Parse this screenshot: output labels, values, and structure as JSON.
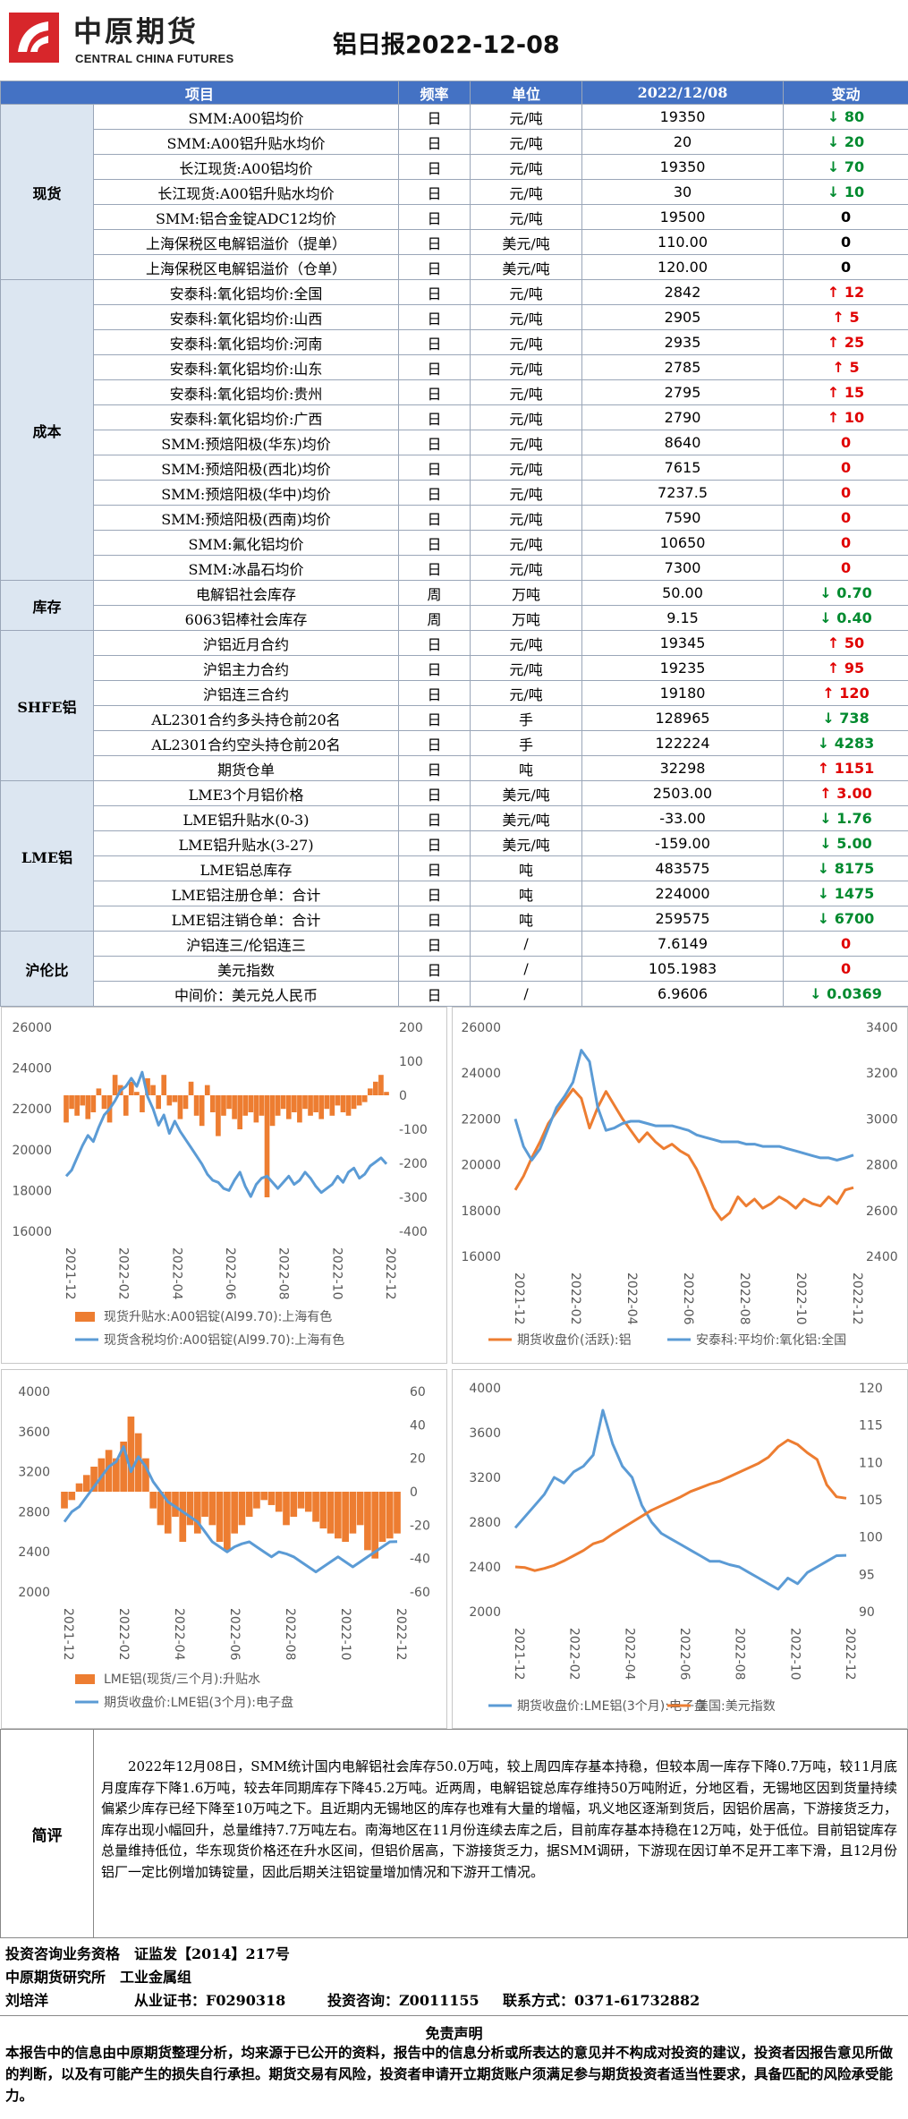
{
  "header": {
    "logo_cn": "中原期货",
    "logo_en": "CENTRAL CHINA FUTURES",
    "title": "铝日报2022-12-08"
  },
  "table": {
    "headers": [
      "项目",
      "频率",
      "单位",
      "2022/12/08",
      "变动"
    ],
    "sections": [
      {
        "category": "现货",
        "rows": [
          {
            "item": "SMM:A00铝均价",
            "freq": "日",
            "unit": "元/吨",
            "value": "19350",
            "dir": "down",
            "change": "80"
          },
          {
            "item": "SMM:A00铝升贴水均价",
            "freq": "日",
            "unit": "元/吨",
            "value": "20",
            "dir": "down",
            "change": "20"
          },
          {
            "item": "长江现货:A00铝均价",
            "freq": "日",
            "unit": "元/吨",
            "value": "19350",
            "dir": "down",
            "change": "70"
          },
          {
            "item": "长江现货:A00铝升贴水均价",
            "freq": "日",
            "unit": "元/吨",
            "value": "30",
            "dir": "down",
            "change": "10"
          },
          {
            "item": "SMM:铝合金锭ADC12均价",
            "freq": "日",
            "unit": "元/吨",
            "value": "19500",
            "dir": "flat",
            "change": "0"
          },
          {
            "item": "上海保税区电解铝溢价（提单）",
            "freq": "日",
            "unit": "美元/吨",
            "value": "110.00",
            "dir": "flat",
            "change": "0"
          },
          {
            "item": "上海保税区电解铝溢价（仓单）",
            "freq": "日",
            "unit": "美元/吨",
            "value": "120.00",
            "dir": "flat",
            "change": "0"
          }
        ]
      },
      {
        "category": "成本",
        "rows": [
          {
            "item": "安泰科:氧化铝均价:全国",
            "freq": "日",
            "unit": "元/吨",
            "value": "2842",
            "dir": "up",
            "change": "12"
          },
          {
            "item": "安泰科:氧化铝均价:山西",
            "freq": "日",
            "unit": "元/吨",
            "value": "2905",
            "dir": "up",
            "change": "5"
          },
          {
            "item": "安泰科:氧化铝均价:河南",
            "freq": "日",
            "unit": "元/吨",
            "value": "2935",
            "dir": "up",
            "change": "25"
          },
          {
            "item": "安泰科:氧化铝均价:山东",
            "freq": "日",
            "unit": "元/吨",
            "value": "2785",
            "dir": "up",
            "change": "5"
          },
          {
            "item": "安泰科:氧化铝均价:贵州",
            "freq": "日",
            "unit": "元/吨",
            "value": "2795",
            "dir": "up",
            "change": "15"
          },
          {
            "item": "安泰科:氧化铝均价:广西",
            "freq": "日",
            "unit": "元/吨",
            "value": "2790",
            "dir": "up",
            "change": "10"
          },
          {
            "item": "SMM:预焙阳极(华东)均价",
            "freq": "日",
            "unit": "元/吨",
            "value": "8640",
            "dir": "red0",
            "change": "0"
          },
          {
            "item": "SMM:预焙阳极(西北)均价",
            "freq": "日",
            "unit": "元/吨",
            "value": "7615",
            "dir": "red0",
            "change": "0"
          },
          {
            "item": "SMM:预焙阳极(华中)均价",
            "freq": "日",
            "unit": "元/吨",
            "value": "7237.5",
            "dir": "red0",
            "change": "0"
          },
          {
            "item": "SMM:预焙阳极(西南)均价",
            "freq": "日",
            "unit": "元/吨",
            "value": "7590",
            "dir": "red0",
            "change": "0"
          },
          {
            "item": "SMM:氟化铝均价",
            "freq": "日",
            "unit": "元/吨",
            "value": "10650",
            "dir": "red0",
            "change": "0"
          },
          {
            "item": "SMM:冰晶石均价",
            "freq": "日",
            "unit": "元/吨",
            "value": "7300",
            "dir": "red0",
            "change": "0"
          }
        ]
      },
      {
        "category": "库存",
        "rows": [
          {
            "item": "电解铝社会库存",
            "freq": "周",
            "unit": "万吨",
            "value": "50.00",
            "dir": "down",
            "change": "0.70"
          },
          {
            "item": "6063铝棒社会库存",
            "freq": "周",
            "unit": "万吨",
            "value": "9.15",
            "dir": "down",
            "change": "0.40"
          }
        ]
      },
      {
        "category": "SHFE铝",
        "rows": [
          {
            "item": "沪铝近月合约",
            "freq": "日",
            "unit": "元/吨",
            "value": "19345",
            "dir": "up",
            "change": "50"
          },
          {
            "item": "沪铝主力合约",
            "freq": "日",
            "unit": "元/吨",
            "value": "19235",
            "dir": "up",
            "change": "95"
          },
          {
            "item": "沪铝连三合约",
            "freq": "日",
            "unit": "元/吨",
            "value": "19180",
            "dir": "up",
            "change": "120"
          },
          {
            "item": "AL2301合约多头持仓前20名",
            "freq": "日",
            "unit": "手",
            "value": "128965",
            "dir": "down",
            "change": "738"
          },
          {
            "item": "AL2301合约空头持仓前20名",
            "freq": "日",
            "unit": "手",
            "value": "122224",
            "dir": "down",
            "change": "4283"
          },
          {
            "item": "期货仓单",
            "freq": "日",
            "unit": "吨",
            "value": "32298",
            "dir": "up",
            "change": "1151"
          }
        ]
      },
      {
        "category": "LME铝",
        "rows": [
          {
            "item": "LME3个月铝价格",
            "freq": "日",
            "unit": "美元/吨",
            "value": "2503.00",
            "dir": "up",
            "change": "3.00"
          },
          {
            "item": "LME铝升贴水(0-3)",
            "freq": "日",
            "unit": "美元/吨",
            "value": "-33.00",
            "dir": "down",
            "change": "1.76"
          },
          {
            "item": "LME铝升贴水(3-27)",
            "freq": "日",
            "unit": "美元/吨",
            "value": "-159.00",
            "dir": "down",
            "change": "5.00"
          },
          {
            "item": "LME铝总库存",
            "freq": "日",
            "unit": "吨",
            "value": "483575",
            "dir": "down",
            "change": "8175"
          },
          {
            "item": "LME铝注册仓单：合计",
            "freq": "日",
            "unit": "吨",
            "value": "224000",
            "dir": "down",
            "change": "1475"
          },
          {
            "item": "LME铝注销仓单：合计",
            "freq": "日",
            "unit": "吨",
            "value": "259575",
            "dir": "down",
            "change": "6700"
          }
        ]
      },
      {
        "category": "沪伦比",
        "rows": [
          {
            "item": "沪铝连三/伦铝连三",
            "freq": "日",
            "unit": "/",
            "value": "7.6149",
            "dir": "red0",
            "change": "0"
          },
          {
            "item": "美元指数",
            "freq": "日",
            "unit": "/",
            "value": "105.1983",
            "dir": "red0",
            "change": "0"
          },
          {
            "item": "中间价：美元兑人民币",
            "freq": "日",
            "unit": "/",
            "value": "6.9606",
            "dir": "down",
            "change": "0.0369"
          }
        ]
      }
    ]
  },
  "chart_data": [
    {
      "type": "bar+line",
      "x_ticks": [
        "2021-12",
        "2022-02",
        "2022-04",
        "2022-06",
        "2022-08",
        "2022-10",
        "2022-12"
      ],
      "left_axis_ticks": [
        "26000",
        "24000",
        "22000",
        "20000",
        "18000",
        "16000"
      ],
      "right_axis_ticks": [
        "200",
        "100",
        "0",
        "-100",
        "-200",
        "-300",
        "-400"
      ],
      "ylim_left": [
        16000,
        26000
      ],
      "ylim_right": [
        -400,
        200
      ],
      "series": [
        {
          "name": "现货升贴水:A00铝锭(Al99.70):上海有色",
          "axis": "right",
          "color": "#ed7d31",
          "kind": "bar",
          "values": [
            -80,
            -40,
            -60,
            -30,
            -70,
            -50,
            20,
            -40,
            -80,
            60,
            30,
            -60,
            40,
            10,
            -50,
            50,
            30,
            -40,
            60,
            -30,
            -20,
            -70,
            -40,
            40,
            -60,
            -90,
            30,
            -50,
            -120,
            -60,
            -40,
            -70,
            -100,
            -60,
            -50,
            -80,
            -60,
            -300,
            -90,
            -60,
            -40,
            -70,
            -50,
            -80,
            -40,
            -60,
            -50,
            -70,
            -40,
            -60,
            -30,
            -50,
            -60,
            -40,
            -30,
            -20,
            20,
            40,
            60,
            10
          ]
        },
        {
          "name": "现货含税均价:A00铝锭(Al99.70):上海有色",
          "axis": "left",
          "color": "#5b9bd5",
          "kind": "line",
          "values": [
            18700,
            19000,
            19600,
            20200,
            20700,
            20400,
            21100,
            21700,
            22000,
            22400,
            22900,
            23100,
            23500,
            23100,
            23800,
            22600,
            22000,
            21200,
            21700,
            20800,
            21400,
            20900,
            20500,
            20100,
            19700,
            19300,
            18800,
            18500,
            18400,
            18100,
            18000,
            18500,
            18900,
            18200,
            17700,
            18300,
            18600,
            18700,
            18400,
            18100,
            18400,
            18700,
            18300,
            18500,
            18900,
            18600,
            18200,
            17900,
            18100,
            18300,
            18700,
            18400,
            18900,
            19100,
            18600,
            18800,
            19200,
            19400,
            19600,
            19300
          ]
        }
      ]
    },
    {
      "type": "line",
      "x_ticks": [
        "2021-12",
        "2022-02",
        "2022-04",
        "2022-06",
        "2022-08",
        "2022-10",
        "2022-12"
      ],
      "left_axis_ticks": [
        "26000",
        "24000",
        "22000",
        "20000",
        "18000",
        "16000"
      ],
      "right_axis_ticks": [
        "3400",
        "3200",
        "3000",
        "2800",
        "2600",
        "2400"
      ],
      "ylim_left": [
        16000,
        26000
      ],
      "ylim_right": [
        2400,
        3400
      ],
      "series": [
        {
          "name": "期货收盘价(活跃):铝",
          "axis": "left",
          "color": "#ed7d31",
          "values": [
            18900,
            19500,
            20300,
            21000,
            21800,
            22300,
            22800,
            23300,
            22900,
            21600,
            22500,
            23200,
            22600,
            22000,
            21500,
            21000,
            21400,
            21000,
            20700,
            20900,
            20600,
            20400,
            19800,
            19000,
            18100,
            17600,
            17900,
            18600,
            18200,
            18500,
            18100,
            18300,
            18600,
            18400,
            18100,
            18500,
            18300,
            18200,
            18600,
            18300,
            18900,
            19000
          ]
        },
        {
          "name": "安泰科:平均价:氧化铝:全国",
          "axis": "right",
          "color": "#5b9bd5",
          "values": [
            3000,
            2880,
            2820,
            2870,
            2960,
            3050,
            3100,
            3160,
            3300,
            3250,
            3050,
            2950,
            2960,
            2980,
            2990,
            2990,
            2980,
            2970,
            2970,
            2970,
            2960,
            2950,
            2930,
            2920,
            2910,
            2900,
            2900,
            2900,
            2890,
            2890,
            2880,
            2880,
            2880,
            2870,
            2860,
            2850,
            2840,
            2830,
            2830,
            2820,
            2830,
            2842
          ]
        }
      ]
    },
    {
      "type": "bar+line",
      "x_ticks": [
        "2021-12",
        "2022-02",
        "2022-04",
        "2022-06",
        "2022-08",
        "2022-10",
        "2022-12"
      ],
      "left_axis_ticks": [
        "4000",
        "3600",
        "3200",
        "2800",
        "2400",
        "2000"
      ],
      "right_axis_ticks": [
        "60",
        "40",
        "20",
        "0",
        "-20",
        "-40",
        "-60"
      ],
      "ylim_left": [
        2000,
        4000
      ],
      "ylim_right": [
        -60,
        60
      ],
      "series": [
        {
          "name": "LME铝(现货/三个月):升贴水",
          "axis": "right",
          "color": "#ed7d31",
          "kind": "bar",
          "values": [
            -10,
            -5,
            5,
            10,
            15,
            20,
            25,
            20,
            30,
            45,
            35,
            20,
            -10,
            -20,
            -25,
            -15,
            -30,
            -20,
            -25,
            -15,
            -20,
            -30,
            -35,
            -25,
            -20,
            -15,
            -10,
            -5,
            -8,
            -12,
            -20,
            -15,
            -10,
            -12,
            -18,
            -22,
            -25,
            -28,
            -30,
            -25,
            -20,
            -35,
            -40,
            -30,
            -28,
            -25
          ]
        },
        {
          "name": "期货收盘价:LME铝(3个月):电子盘",
          "axis": "left",
          "color": "#5b9bd5",
          "kind": "line",
          "values": [
            2700,
            2800,
            2850,
            2950,
            3050,
            3150,
            3250,
            3300,
            3450,
            3200,
            3350,
            3250,
            3100,
            3000,
            2900,
            2850,
            2800,
            2750,
            2700,
            2600,
            2500,
            2450,
            2400,
            2450,
            2480,
            2500,
            2450,
            2400,
            2350,
            2400,
            2380,
            2350,
            2300,
            2250,
            2200,
            2250,
            2300,
            2350,
            2300,
            2250,
            2300,
            2350,
            2400,
            2450,
            2500,
            2503
          ]
        }
      ]
    },
    {
      "type": "line",
      "x_ticks": [
        "2021-12",
        "2022-02",
        "2022-04",
        "2022-06",
        "2022-08",
        "2022-10",
        "2022-12"
      ],
      "left_axis_ticks": [
        "4000",
        "3600",
        "3200",
        "2800",
        "2400",
        "2000"
      ],
      "right_axis_ticks": [
        "120",
        "115",
        "110",
        "105",
        "100",
        "95",
        "90"
      ],
      "ylim_left": [
        2000,
        4000
      ],
      "ylim_right": [
        90,
        120
      ],
      "series": [
        {
          "name": "期货收盘价:LME铝(3个月):电子盘",
          "axis": "left",
          "color": "#5b9bd5",
          "values": [
            2750,
            2850,
            2950,
            3050,
            3200,
            3150,
            3250,
            3300,
            3400,
            3800,
            3500,
            3300,
            3200,
            2950,
            2800,
            2700,
            2650,
            2600,
            2550,
            2500,
            2450,
            2450,
            2420,
            2400,
            2350,
            2300,
            2250,
            2200,
            2300,
            2250,
            2350,
            2400,
            2450,
            2500,
            2503
          ]
        },
        {
          "name": "美国:美元指数",
          "axis": "right",
          "color": "#ed7d31",
          "values": [
            96.0,
            95.9,
            95.5,
            95.8,
            96.2,
            96.8,
            97.5,
            98.2,
            99.1,
            99.5,
            100.4,
            101.2,
            102.0,
            102.8,
            103.6,
            104.2,
            104.8,
            105.4,
            106.1,
            106.6,
            107.1,
            107.5,
            108.1,
            108.7,
            109.3,
            109.9,
            110.7,
            112.1,
            113.0,
            112.4,
            111.3,
            110.4,
            107.0,
            105.4,
            105.2
          ]
        }
      ]
    }
  ],
  "comment": {
    "label": "简评",
    "text": "2022年12月08日，SMM统计国内电解铝社会库存50.0万吨，较上周四库存基本持稳，但较本周一库存下降0.7万吨，较11月底月度库存下降1.6万吨，较去年同期库存下降45.2万吨。近两周，电解铝锭总库存维持50万吨附近，分地区看，无锡地区因到货量持续偏紧少库存已经下降至10万吨之下。且近期内无锡地区的库存也难有大量的增幅，巩义地区逐渐到货后，因铝价居高，下游接货乏力，库存出现小幅回升，总量维持7.7万吨左右。南海地区在11月份连续去库之后，目前库存基本持稳在12万吨，处于低位。目前铝锭库存总量维持低位，华东现货价格还在升水区间，但铝价居高，下游接货乏力，据SMM调研，下游现在因订单不足开工率下滑，且12月份铝厂一定比例增加铸锭量，因此后期关注铝锭量增加情况和下游开工情况。"
  },
  "footer": {
    "line1": "投资咨询业务资格　证监发【2014】217号",
    "line2": "中原期货研究所　工业金属组",
    "line3_name": "刘培洋",
    "line3_cert": "从业证书：F0290318",
    "line3_adv": "投资咨询：Z0011155",
    "line3_contact": "联系方式：0371-61732882",
    "disclaimer_title": "免责声明",
    "disclaimer_text": "本报告中的信息由中原期货整理分析，均来源于已公开的资料，报告中的信息分析或所表达的意见并不构成对投资的建议，投资者因报告意见所做的判断，以及有可能产生的损失自行承担。期货交易有风险，投资者申请开立期货账户须满足参与期货投资者适当性要求，具备匹配的风险承受能力。"
  },
  "colors": {
    "header_bg": "#4472c4",
    "cat_bg": "#dce6f1",
    "up": "#e00000",
    "down": "#008a2e",
    "logo_red": "#d7262b"
  }
}
